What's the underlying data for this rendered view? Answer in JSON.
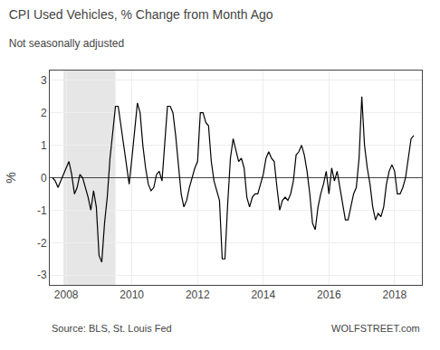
{
  "chart_data": {
    "type": "line",
    "title": "CPI Used Vehicles, % Change from Month Ago",
    "subtitle": "Not seasonally adjusted",
    "ylabel": "%",
    "annotations": [
      "Source: BLS, St. Louis Fed",
      "WOLFSTREET.com"
    ],
    "color": "#000000",
    "grid": true,
    "xlim": [
      2007.5,
      2018.83
    ],
    "xticks": [
      2008,
      2010,
      2012,
      2014,
      2016,
      2018
    ],
    "ylim": [
      -3.3,
      3.3
    ],
    "yticks": [
      -3,
      -2,
      -1,
      0,
      1,
      2,
      3
    ],
    "shade": [
      2007.917,
      2009.5
    ],
    "x": [
      2007.583,
      2007.667,
      2007.75,
      2007.833,
      2007.917,
      2008.0,
      2008.083,
      2008.167,
      2008.25,
      2008.333,
      2008.417,
      2008.5,
      2008.583,
      2008.667,
      2008.75,
      2008.833,
      2008.917,
      2009.0,
      2009.083,
      2009.167,
      2009.25,
      2009.333,
      2009.417,
      2009.5,
      2009.583,
      2009.667,
      2009.75,
      2009.833,
      2009.917,
      2010.0,
      2010.083,
      2010.167,
      2010.25,
      2010.333,
      2010.417,
      2010.5,
      2010.583,
      2010.667,
      2010.75,
      2010.833,
      2010.917,
      2011.0,
      2011.083,
      2011.167,
      2011.25,
      2011.333,
      2011.417,
      2011.5,
      2011.583,
      2011.667,
      2011.75,
      2011.833,
      2011.917,
      2012.0,
      2012.083,
      2012.167,
      2012.25,
      2012.333,
      2012.417,
      2012.5,
      2012.583,
      2012.667,
      2012.75,
      2012.833,
      2012.917,
      2013.0,
      2013.083,
      2013.167,
      2013.25,
      2013.333,
      2013.417,
      2013.5,
      2013.583,
      2013.667,
      2013.75,
      2013.833,
      2013.917,
      2014.0,
      2014.083,
      2014.167,
      2014.25,
      2014.333,
      2014.417,
      2014.5,
      2014.583,
      2014.667,
      2014.75,
      2014.833,
      2014.917,
      2015.0,
      2015.083,
      2015.167,
      2015.25,
      2015.333,
      2015.417,
      2015.5,
      2015.583,
      2015.667,
      2015.75,
      2015.833,
      2015.917,
      2016.0,
      2016.083,
      2016.167,
      2016.25,
      2016.333,
      2016.417,
      2016.5,
      2016.583,
      2016.667,
      2016.75,
      2016.833,
      2016.917,
      2017.0,
      2017.083,
      2017.167,
      2017.25,
      2017.333,
      2017.417,
      2017.5,
      2017.583,
      2017.667,
      2017.75,
      2017.833,
      2017.917,
      2018.0,
      2018.083,
      2018.167,
      2018.25,
      2018.333,
      2018.417,
      2018.5,
      2018.583
    ],
    "values": [
      0.0,
      -0.1,
      -0.3,
      -0.1,
      0.1,
      0.3,
      0.5,
      0.1,
      -0.5,
      -0.3,
      0.1,
      0.0,
      -0.3,
      -0.6,
      -1.0,
      -0.4,
      -0.9,
      -2.4,
      -2.6,
      -1.4,
      -0.6,
      0.6,
      1.4,
      2.2,
      2.2,
      1.6,
      1.0,
      0.5,
      -0.2,
      0.6,
      1.5,
      2.3,
      2.0,
      1.0,
      0.3,
      -0.2,
      -0.4,
      -0.3,
      0.1,
      0.2,
      -0.1,
      1.2,
      2.2,
      2.2,
      2.0,
      1.3,
      0.3,
      -0.5,
      -0.9,
      -0.7,
      -0.3,
      0.0,
      0.3,
      0.5,
      2.0,
      2.0,
      1.7,
      1.6,
      0.5,
      -0.1,
      -0.4,
      -0.7,
      -2.5,
      -2.5,
      -0.8,
      0.6,
      1.2,
      0.8,
      0.5,
      0.6,
      0.3,
      -0.6,
      -0.9,
      -0.6,
      -0.5,
      -0.5,
      -0.2,
      0.1,
      0.6,
      0.8,
      0.6,
      0.5,
      -0.3,
      -1.0,
      -0.7,
      -0.6,
      -0.7,
      -0.5,
      -0.1,
      0.7,
      0.8,
      1.0,
      0.7,
      0.2,
      -0.5,
      -1.4,
      -1.6,
      -0.9,
      -0.5,
      -0.2,
      0.2,
      -0.5,
      0.3,
      -0.1,
      0.2,
      -0.3,
      -0.7,
      -1.3,
      -1.3,
      -0.9,
      -0.5,
      -0.3,
      0.6,
      2.5,
      1.0,
      0.3,
      -0.2,
      -0.9,
      -1.3,
      -1.1,
      -1.2,
      -0.9,
      -0.2,
      0.2,
      0.4,
      0.2,
      -0.5,
      -0.5,
      -0.3,
      0.0,
      0.6,
      1.2,
      1.3
    ]
  }
}
